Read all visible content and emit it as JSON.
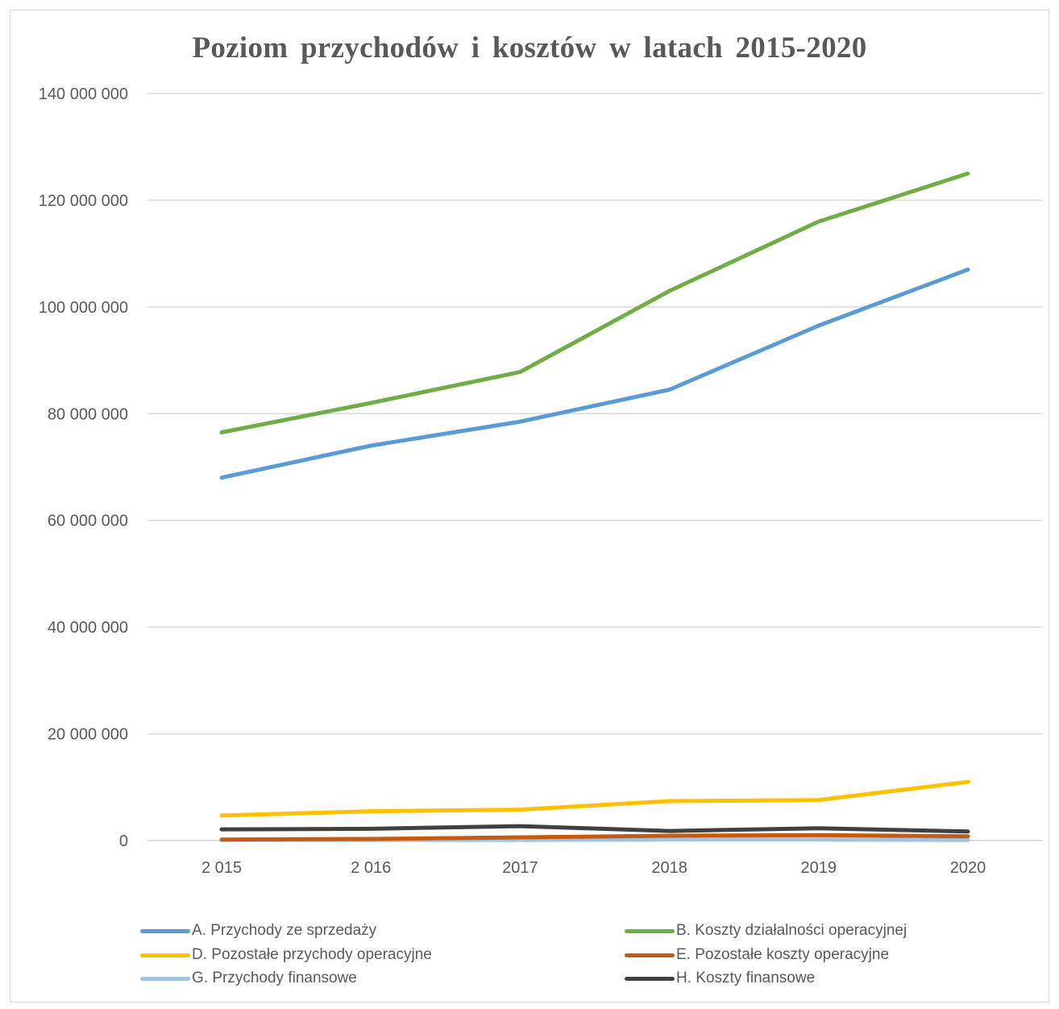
{
  "chart_data": {
    "type": "line",
    "title": "Poziom przychodów i kosztów w latach 2015-2020",
    "xlabel": "",
    "ylabel": "",
    "categories": [
      "2 015",
      "2 016",
      "2017",
      "2018",
      "2019",
      "2020"
    ],
    "ylim": [
      0,
      140000000
    ],
    "yticks": [
      0,
      20000000,
      40000000,
      60000000,
      80000000,
      100000000,
      120000000,
      140000000
    ],
    "ytick_labels": [
      "0",
      "20 000 000",
      "40 000 000",
      "60 000 000",
      "80 000 000",
      "100 000 000",
      "120 000 000",
      "140 000 000"
    ],
    "grid": true,
    "legend_position": "bottom",
    "series": [
      {
        "name": "A. Przychody ze sprzedaży",
        "color": "#5b9bd5",
        "values": [
          68000000,
          74000000,
          78500000,
          84500000,
          96500000,
          107000000
        ]
      },
      {
        "name": "B. Koszty działalności operacyjnej",
        "color": "#70ad47",
        "values": [
          76500000,
          82000000,
          87800000,
          103000000,
          116000000,
          125000000
        ]
      },
      {
        "name": "D. Pozostałe przychody operacyjne",
        "color": "#ffc000",
        "values": [
          4700000,
          5500000,
          5800000,
          7400000,
          7600000,
          11000000
        ]
      },
      {
        "name": "E. Pozostałe koszty operacyjne",
        "color": "#c55a11",
        "values": [
          200000,
          300000,
          600000,
          900000,
          1000000,
          800000
        ]
      },
      {
        "name": "G. Przychody finansowe",
        "color": "#9dc3e6",
        "values": [
          100000,
          100000,
          100000,
          200000,
          200000,
          100000
        ]
      },
      {
        "name": "H. Koszty finansowe",
        "color": "#404040",
        "values": [
          2100000,
          2200000,
          2700000,
          1800000,
          2300000,
          1700000
        ]
      }
    ]
  }
}
